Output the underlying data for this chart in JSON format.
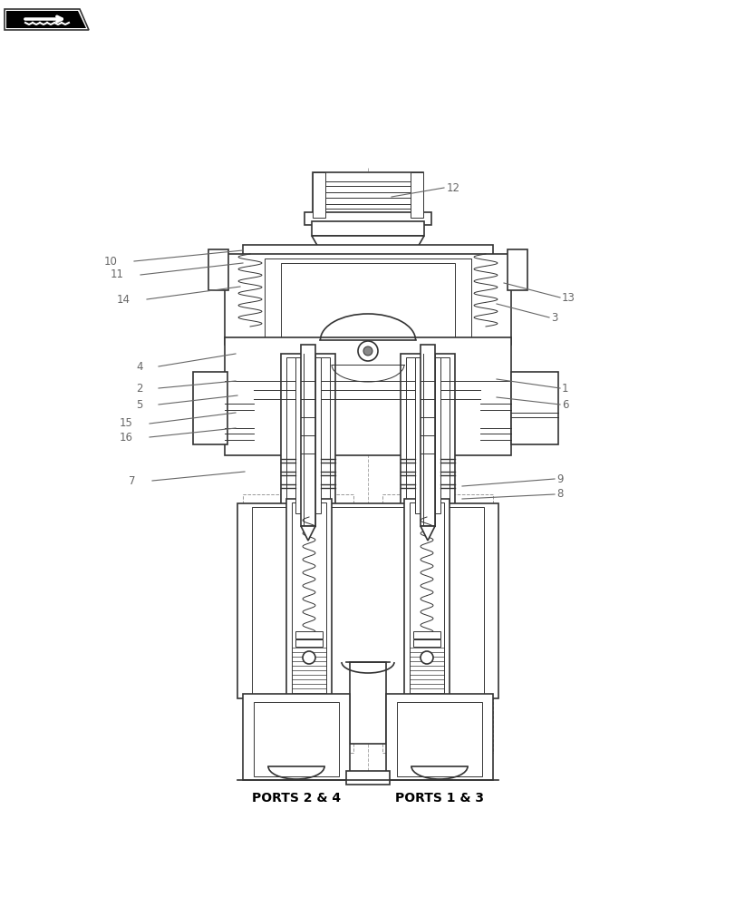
{
  "bg_color": "#ffffff",
  "line_color": "#333333",
  "label_color": "#666666",
  "ports_label_left": "PORTS 2 & 4",
  "ports_label_right": "PORTS 1 & 3",
  "figsize": [
    8.12,
    10.0
  ],
  "dpi": 100
}
